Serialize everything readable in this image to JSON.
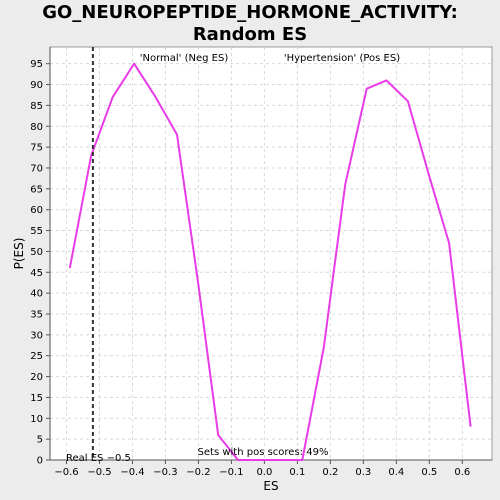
{
  "chart_data": {
    "type": "line",
    "title": "GO_NEUROPEPTIDE_HORMONE_ACTIVITY: Random ES distribution",
    "title_lines": [
      "GO_NEUROPEPTIDE_HORMONE_ACTIVITY: Random ES",
      "distribution"
    ],
    "xlabel": "ES",
    "ylabel": "P(ES)",
    "xlim": [
      -0.65,
      0.69
    ],
    "ylim": [
      0,
      99
    ],
    "x_ticks": [
      -0.6,
      -0.5,
      -0.4,
      -0.3,
      -0.2,
      -0.1,
      0.0,
      0.1,
      0.2,
      0.3,
      0.4,
      0.5,
      0.6
    ],
    "x_tick_labels": [
      "−0.6",
      "−0.5",
      "−0.4",
      "−0.3",
      "−0.2",
      "−0.1",
      "0.0",
      "0.1",
      "0.2",
      "0.3",
      "0.4",
      "0.5",
      "0.6"
    ],
    "y_ticks": [
      0,
      5,
      10,
      15,
      20,
      25,
      30,
      35,
      40,
      45,
      50,
      55,
      60,
      65,
      70,
      75,
      80,
      85,
      90,
      95
    ],
    "grid": true,
    "series": [
      {
        "color": "#e83ce8",
        "x": [
          -0.59,
          -0.525,
          -0.46,
          -0.395,
          -0.33,
          -0.265,
          -0.2,
          -0.14,
          -0.08,
          -0.015,
          0.05,
          0.115,
          0.18,
          0.245,
          0.31,
          0.37,
          0.435,
          0.5,
          0.56,
          0.625
        ],
        "y": [
          46,
          73,
          87,
          95,
          87,
          78,
          42,
          6,
          0,
          0,
          0,
          0,
          27,
          66,
          89,
          91,
          86,
          68,
          52,
          8
        ]
      }
    ],
    "annotations": {
      "neg_label": "'Normal' (Neg ES)",
      "neg_color": "#3c3cd0",
      "pos_label": "'Hypertension' (Pos ES)",
      "pos_color": "#e04040",
      "pos_scores": "Sets with pos scores: 49%",
      "real_es_label": "Real ES −0.5",
      "real_es_value": -0.52
    }
  }
}
